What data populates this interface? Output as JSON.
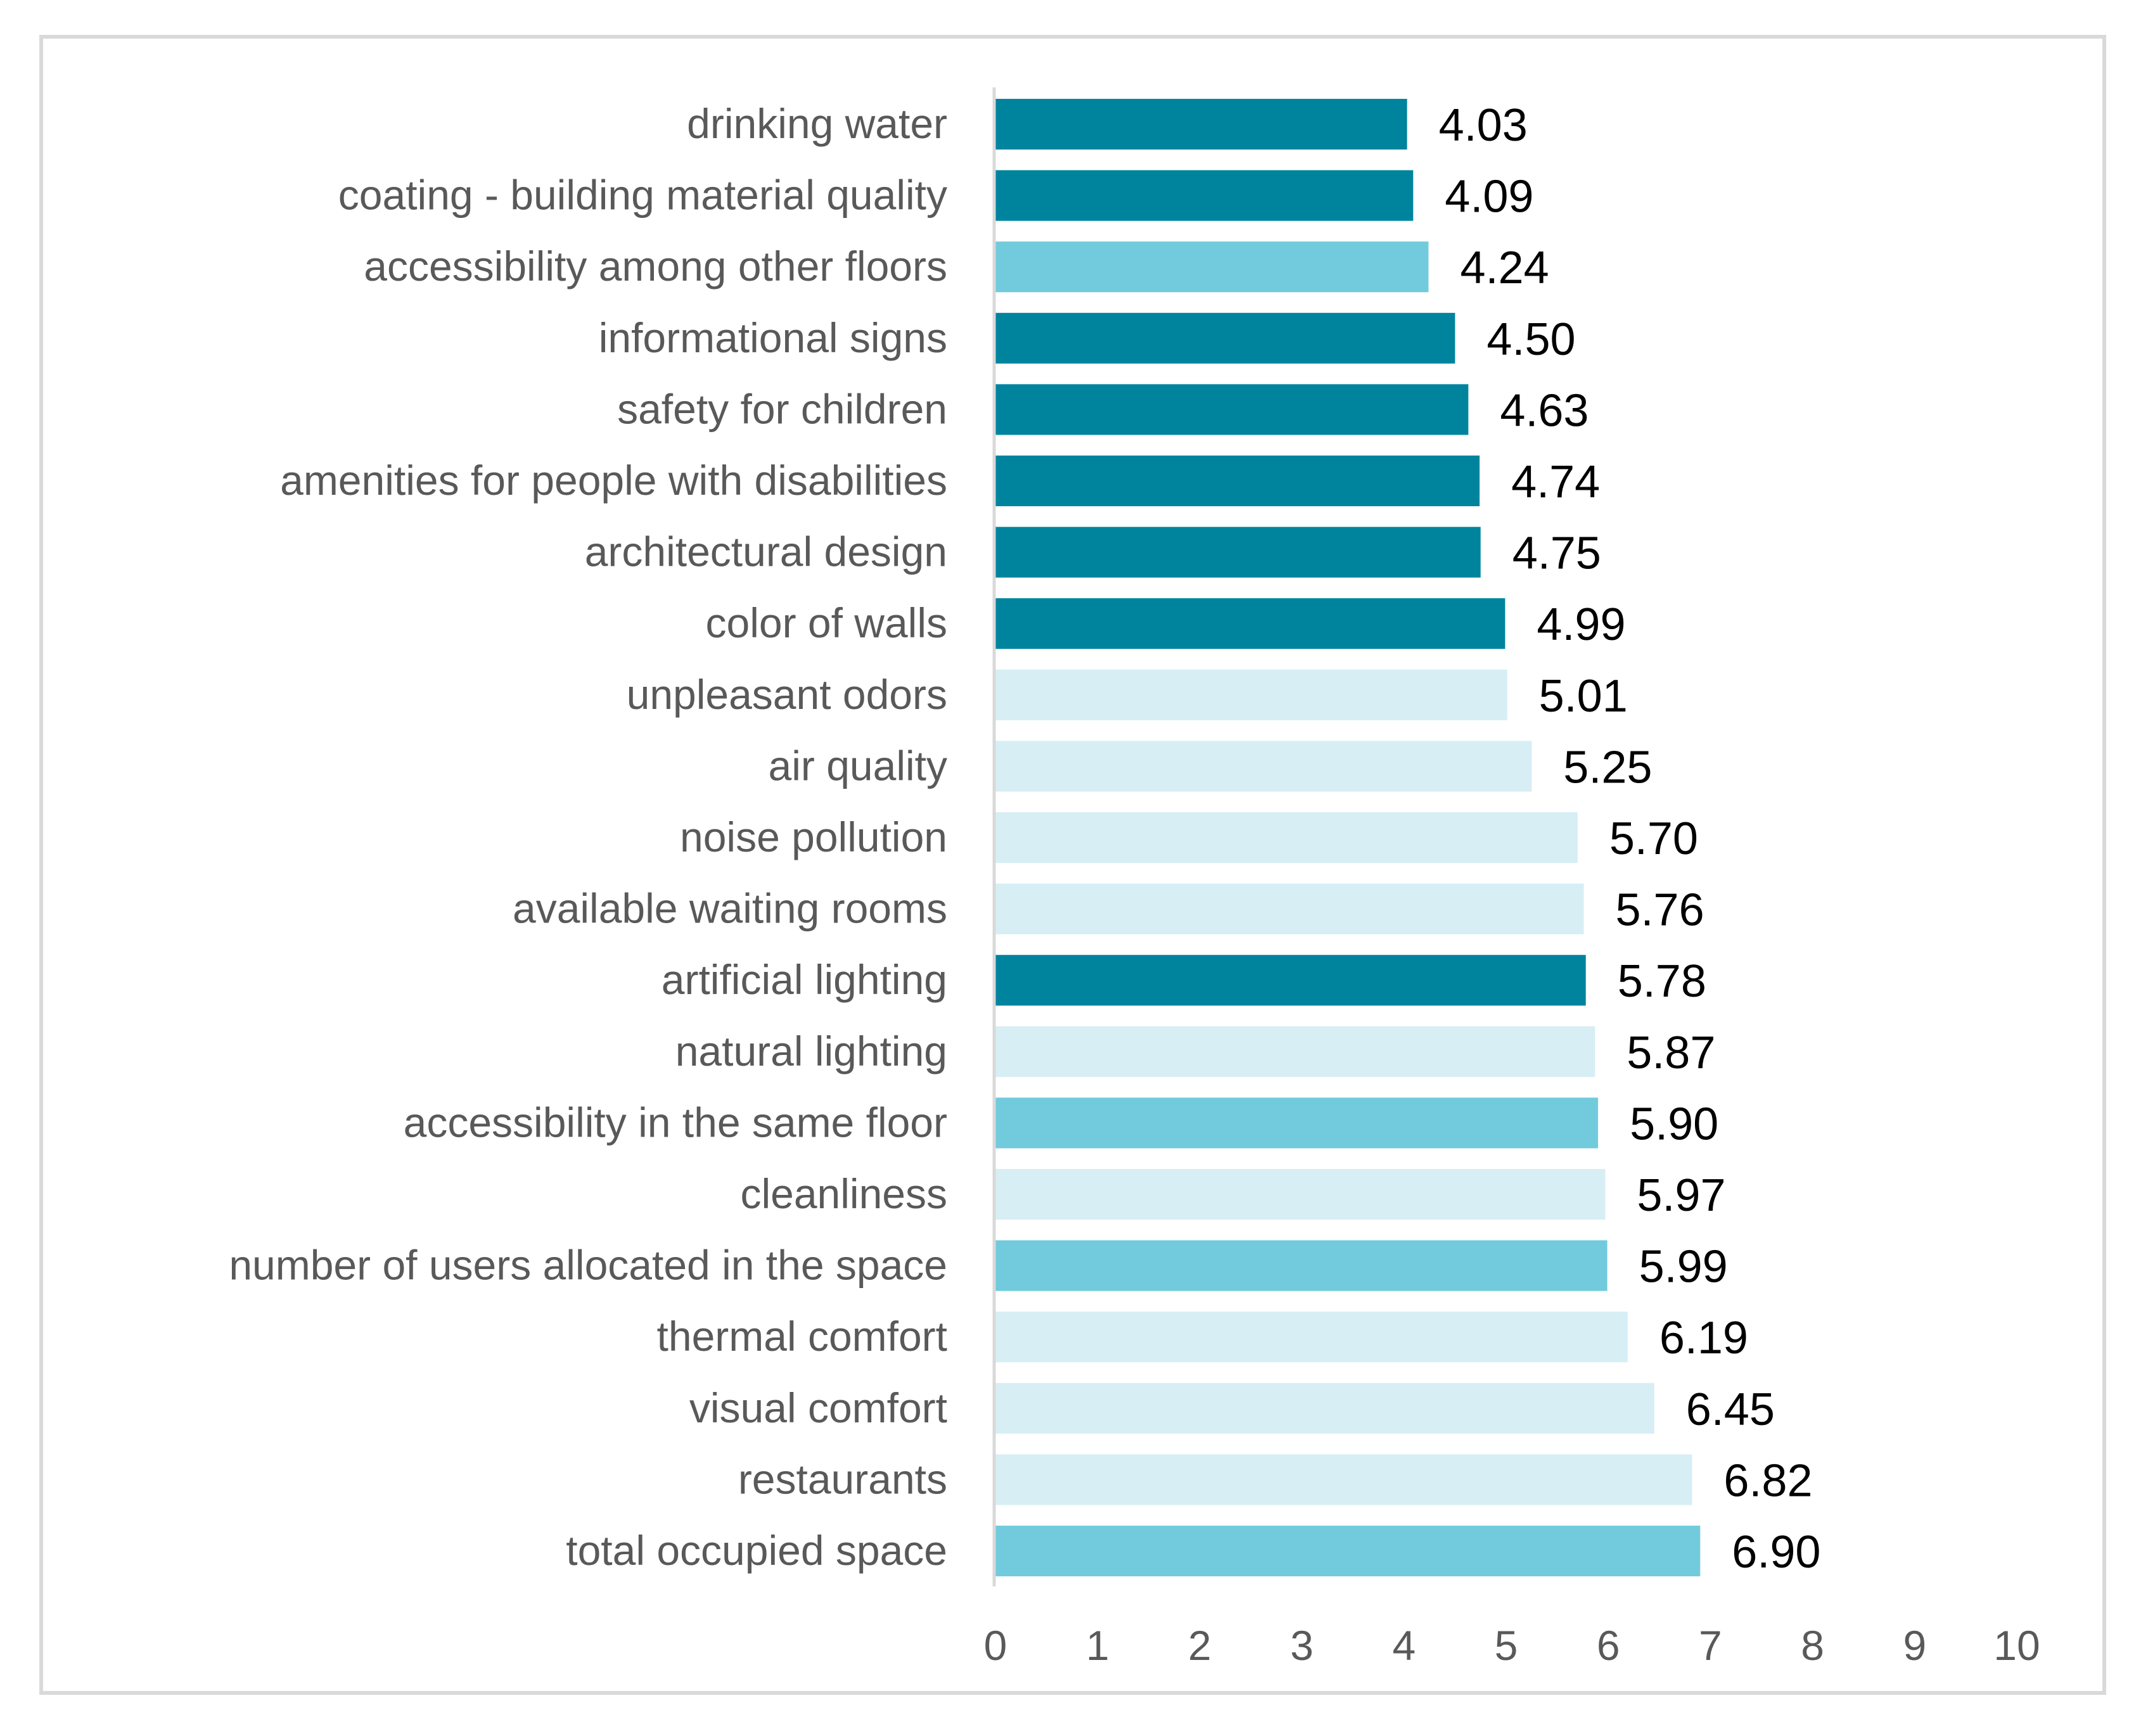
{
  "chart_data": {
    "type": "bar",
    "orientation": "horizontal",
    "title": "",
    "xlabel": "",
    "ylabel": "",
    "xlim": [
      0,
      10
    ],
    "xticks": [
      "0",
      "1",
      "2",
      "3",
      "4",
      "5",
      "6",
      "7",
      "8",
      "9",
      "10"
    ],
    "grid": false,
    "legend": "none",
    "categories": [
      "drinking water",
      "coating - building material quality",
      "accessibility among other floors",
      "informational signs",
      "safety for children",
      "amenities for people with disabilities",
      "architectural design",
      "color of walls",
      "unpleasant odors",
      "air quality",
      "noise pollution",
      "available waiting rooms",
      "artificial lighting",
      "natural lighting",
      "accessibility in the same floor",
      "cleanliness",
      "number of users allocated in the space",
      "thermal comfort",
      "visual comfort",
      "restaurants",
      "total occupied space"
    ],
    "values": [
      4.03,
      4.09,
      4.24,
      4.5,
      4.63,
      4.74,
      4.75,
      4.99,
      5.01,
      5.25,
      5.7,
      5.76,
      5.78,
      5.87,
      5.9,
      5.97,
      5.99,
      6.19,
      6.45,
      6.82,
      6.9
    ],
    "value_labels": [
      "4.03",
      "4.09",
      "4.24",
      "4.50",
      "4.63",
      "4.74",
      "4.75",
      "4.99",
      "5.01",
      "5.25",
      "5.70",
      "5.76",
      "5.78",
      "5.87",
      "5.90",
      "5.97",
      "5.99",
      "6.19",
      "6.45",
      "6.82",
      "6.90"
    ],
    "bar_groups": [
      "dark",
      "dark",
      "medium",
      "dark",
      "dark",
      "dark",
      "dark",
      "dark",
      "light",
      "light",
      "light",
      "light",
      "dark",
      "light",
      "medium",
      "light",
      "medium",
      "light",
      "light",
      "light",
      "medium"
    ],
    "colors": {
      "dark": "#00849e",
      "medium": "#72cbdd",
      "light": "#d7eef5",
      "axis": "#d9d9d9",
      "frame": "#d9d9d9"
    }
  }
}
